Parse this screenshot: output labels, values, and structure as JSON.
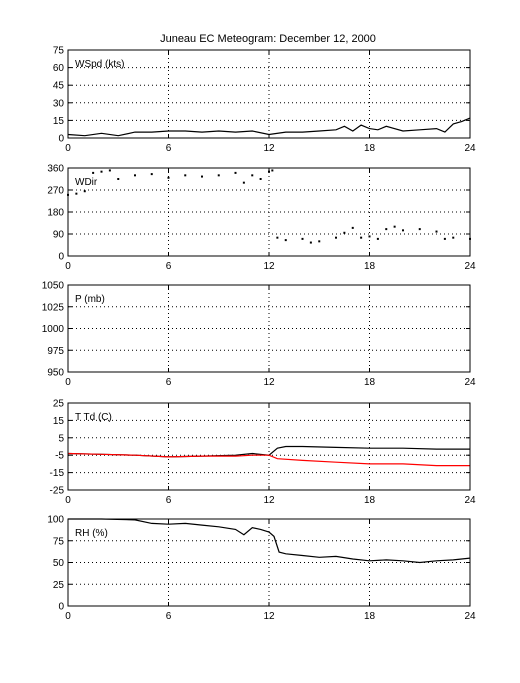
{
  "title": "Juneau EC Meteogram:   December 12, 2000",
  "chart_data": [
    {
      "type": "line",
      "label": "WSpd (kts)",
      "xlim": [
        0,
        24
      ],
      "ylim": [
        0,
        75
      ],
      "xticks": [
        0,
        6,
        12,
        18,
        24
      ],
      "yticks": [
        0,
        15,
        30,
        45,
        60,
        75
      ],
      "grid": true,
      "series": [
        {
          "color": "#000000",
          "x": [
            0,
            1,
            2,
            3,
            4,
            5,
            6,
            7,
            8,
            9,
            10,
            11,
            12,
            13,
            14,
            15,
            16,
            16.5,
            17,
            17.5,
            18,
            18.5,
            19,
            20,
            21,
            22,
            22.5,
            23,
            23.5,
            24
          ],
          "y": [
            3,
            2,
            4,
            2,
            5,
            5,
            6,
            6,
            5,
            6,
            5,
            6,
            3,
            5,
            5,
            6,
            7,
            10,
            6,
            11,
            8,
            7,
            10,
            6,
            7,
            8,
            5,
            12,
            14,
            17
          ]
        }
      ]
    },
    {
      "type": "scatter",
      "label": "WDir",
      "xlim": [
        0,
        24
      ],
      "ylim": [
        0,
        360
      ],
      "xticks": [
        0,
        6,
        12,
        18,
        24
      ],
      "yticks": [
        0,
        90,
        180,
        270,
        360
      ],
      "grid": true,
      "series": [
        {
          "color": "#000000",
          "x": [
            0,
            0.5,
            1,
            1.5,
            2,
            2.5,
            3,
            4,
            5,
            6,
            7,
            8,
            9,
            10,
            10.5,
            11,
            11.5,
            12,
            12.2,
            12.5,
            13,
            14,
            14.5,
            15,
            16,
            16.5,
            17,
            17.5,
            18,
            18.5,
            19,
            19.5,
            20,
            21,
            22,
            22.5,
            23,
            24
          ],
          "y": [
            250,
            255,
            265,
            340,
            345,
            350,
            315,
            330,
            335,
            320,
            330,
            325,
            330,
            340,
            300,
            330,
            315,
            345,
            350,
            75,
            65,
            70,
            55,
            60,
            75,
            95,
            115,
            75,
            80,
            70,
            110,
            120,
            105,
            110,
            100,
            70,
            75,
            70
          ]
        }
      ]
    },
    {
      "type": "line",
      "label": "P (mb)",
      "xlim": [
        0,
        24
      ],
      "ylim": [
        950,
        1050
      ],
      "xticks": [
        0,
        6,
        12,
        18,
        24
      ],
      "yticks": [
        950,
        975,
        1000,
        1025,
        1050
      ],
      "grid": true,
      "series": []
    },
    {
      "type": "line",
      "label": "T Td (C)",
      "xlim": [
        0,
        24
      ],
      "ylim": [
        -25,
        25
      ],
      "xticks": [
        0,
        6,
        12,
        18,
        24
      ],
      "yticks": [
        -25,
        -15,
        -5,
        5,
        15,
        25
      ],
      "grid": true,
      "series": [
        {
          "color": "#000000",
          "x": [
            0,
            2,
            4,
            6,
            8,
            10,
            11,
            12,
            12.5,
            13,
            14,
            16,
            18,
            20,
            22,
            24
          ],
          "y": [
            -4,
            -4.5,
            -5,
            -6,
            -5.5,
            -5,
            -4,
            -5,
            -1,
            0,
            0,
            -0.5,
            -1,
            -1,
            -1.5,
            -1.5
          ]
        },
        {
          "color": "#ff0000",
          "x": [
            0,
            2,
            4,
            6,
            8,
            10,
            11,
            12,
            12.5,
            14,
            16,
            18,
            20,
            22,
            24
          ],
          "y": [
            -4,
            -4.5,
            -5,
            -6,
            -5.5,
            -5.5,
            -5,
            -5,
            -7,
            -8,
            -9,
            -10,
            -10,
            -11,
            -11
          ]
        }
      ]
    },
    {
      "type": "line",
      "label": "RH (%)",
      "xlim": [
        0,
        24
      ],
      "ylim": [
        0,
        100
      ],
      "xticks": [
        0,
        6,
        12,
        18,
        24
      ],
      "yticks": [
        0,
        25,
        50,
        75,
        100
      ],
      "grid": true,
      "series": [
        {
          "color": "#000000",
          "x": [
            0,
            2,
            4,
            5,
            6,
            7,
            8,
            9,
            10,
            10.5,
            11,
            11.5,
            12,
            12.3,
            12.6,
            13,
            14,
            15,
            16,
            17,
            18,
            19,
            20,
            21,
            22,
            23,
            24
          ],
          "y": [
            100,
            100,
            99,
            95,
            94,
            95,
            93,
            91,
            88,
            82,
            90,
            88,
            85,
            80,
            62,
            60,
            58,
            56,
            57,
            54,
            52,
            53,
            52,
            50,
            52,
            53,
            55
          ]
        }
      ]
    }
  ]
}
